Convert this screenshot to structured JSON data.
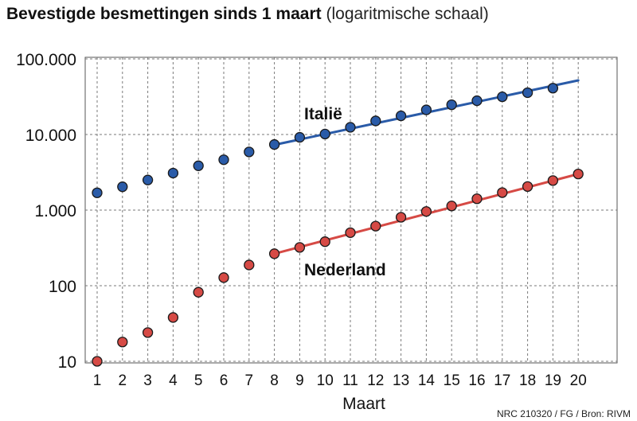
{
  "chart_data": {
    "type": "scatter",
    "title": "Bevestigde besmettingen sinds 1 maart",
    "subtitle": "(logaritmische schaal)",
    "xlabel": "Maart",
    "ylabel": "",
    "yscale": "log",
    "ylim": [
      10,
      100000
    ],
    "xlim": [
      1,
      20
    ],
    "x_ticks": [
      1,
      2,
      3,
      4,
      5,
      6,
      7,
      8,
      9,
      10,
      11,
      12,
      13,
      14,
      15,
      16,
      17,
      18,
      19,
      20
    ],
    "y_ticks": [
      {
        "value": 10,
        "label": "10"
      },
      {
        "value": 100,
        "label": "100"
      },
      {
        "value": 1000,
        "label": "1.000"
      },
      {
        "value": 10000,
        "label": "10.000"
      },
      {
        "value": 100000,
        "label": "100.000"
      }
    ],
    "grid": true,
    "series": [
      {
        "name": "Italië",
        "color": "#2a5ba8",
        "line_color": "#2a5ba8",
        "x": [
          1,
          2,
          3,
          4,
          5,
          6,
          7,
          8,
          9,
          10,
          11,
          12,
          13,
          14,
          15,
          16,
          17,
          18,
          19
        ],
        "values": [
          1694,
          2036,
          2502,
          3089,
          3858,
          4636,
          5883,
          7375,
          9172,
          10149,
          12462,
          15113,
          17660,
          21157,
          24747,
          27980,
          31506,
          35713,
          41035
        ],
        "trend": {
          "x": [
            8,
            20
          ],
          "values": [
            7300,
            52000
          ]
        }
      },
      {
        "name": "Nederland",
        "color": "#d64a45",
        "line_color": "#d64a45",
        "x": [
          1,
          2,
          3,
          4,
          5,
          6,
          7,
          8,
          9,
          10,
          11,
          12,
          13,
          14,
          15,
          16,
          17,
          18,
          19,
          20
        ],
        "values": [
          10,
          18,
          24,
          38,
          82,
          128,
          188,
          265,
          321,
          382,
          503,
          614,
          804,
          959,
          1135,
          1413,
          1705,
          2051,
          2460,
          3003
        ],
        "trend": {
          "x": [
            8,
            20
          ],
          "values": [
            265,
            3003
          ]
        }
      }
    ],
    "source": "NRC 210320 / FG / Bron: RIVM"
  }
}
